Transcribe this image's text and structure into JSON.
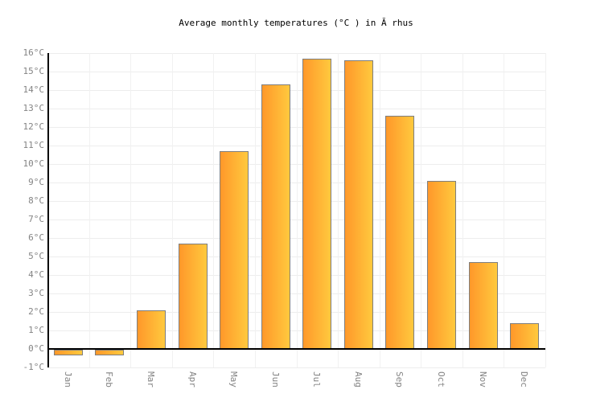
{
  "title": "Average monthly temperatures (°C ) in Ă rhus",
  "chart_data": {
    "type": "bar",
    "title": "Average monthly temperatures (°C ) in Ă rhus",
    "categories": [
      "Jan",
      "Feb",
      "Mar",
      "Apr",
      "May",
      "Jun",
      "Jul",
      "Aug",
      "Sep",
      "Oct",
      "Nov",
      "Dec"
    ],
    "values": [
      -0.3,
      -0.3,
      2.1,
      5.7,
      10.7,
      14.3,
      15.7,
      15.6,
      12.6,
      9.1,
      4.7,
      1.4
    ],
    "xlabel": "",
    "ylabel": "",
    "ylim": [
      -1,
      16
    ],
    "ytick_step": 1,
    "ytick_suffix": "°C",
    "grid": true,
    "legend": "none",
    "colors": {
      "bar_gradient_left": "#ff982a",
      "bar_gradient_right": "#ffc93e",
      "bar_border": "#7e7e7e",
      "axis": "#000000",
      "gridline": "#ededed",
      "tick_label": "#848484",
      "title_text": "#000000",
      "background": "#ffffff"
    }
  }
}
